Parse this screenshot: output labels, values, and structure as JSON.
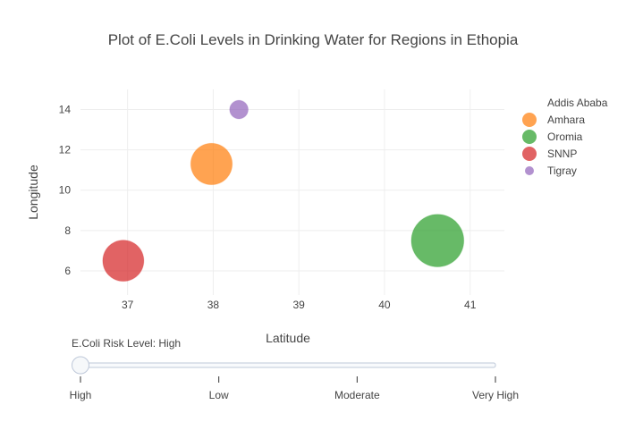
{
  "chart_data": {
    "type": "scatter",
    "title": "Plot of E.Coli Levels in Drinking Water for Regions in Ethopia",
    "xlabel": "Latitude",
    "ylabel": "Longitude",
    "xlim": [
      36.45,
      41.4
    ],
    "ylim": [
      4.8,
      15.0
    ],
    "x_ticks": [
      37,
      38,
      39,
      40,
      41
    ],
    "y_ticks": [
      6,
      8,
      10,
      12,
      14
    ],
    "grid": true,
    "legend_position": "right",
    "series": [
      {
        "name": "Addis Ababa",
        "color": "#1f77b4",
        "points": []
      },
      {
        "name": "Amhara",
        "color": "#ff7f0e",
        "points": [
          {
            "x": 37.98,
            "y": 11.3,
            "size": 1.0
          }
        ]
      },
      {
        "name": "Oromia",
        "color": "#2ca02c",
        "points": [
          {
            "x": 40.62,
            "y": 7.5,
            "size": 1.6
          }
        ]
      },
      {
        "name": "SNNP",
        "color": "#d62728",
        "points": [
          {
            "x": 36.95,
            "y": 6.5,
            "size": 0.98
          }
        ]
      },
      {
        "name": "Tigray",
        "color": "#9467bd",
        "points": [
          {
            "x": 38.3,
            "y": 14.0,
            "size": 0.2
          }
        ]
      }
    ]
  },
  "slider": {
    "prefix": "E.Coli Risk Level: ",
    "current": "High",
    "steps": [
      "High",
      "Low",
      "Moderate",
      "Very High"
    ],
    "active_index": 0
  }
}
